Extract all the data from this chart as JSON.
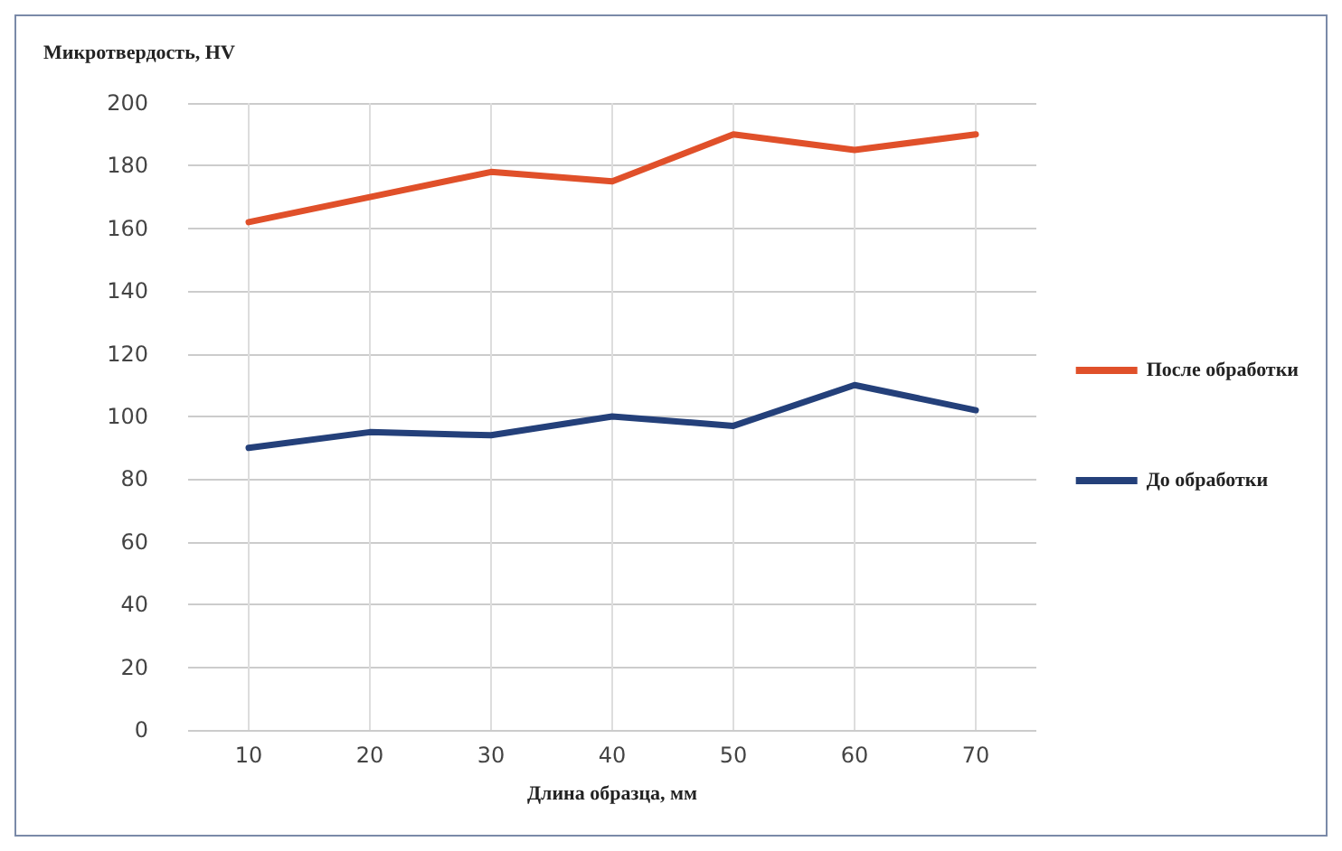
{
  "chart_data": {
    "type": "line",
    "xlabel": "Длина образца, мм",
    "ylabel": "Микротвердость, HV",
    "x": [
      10,
      20,
      30,
      40,
      50,
      60,
      70
    ],
    "xlim": [
      5,
      75
    ],
    "xticks": [
      10,
      20,
      30,
      40,
      50,
      60,
      70
    ],
    "ylim": [
      0,
      200
    ],
    "yticks": [
      0,
      20,
      40,
      60,
      80,
      100,
      120,
      140,
      160,
      180,
      200
    ],
    "grid": true,
    "legend": "right",
    "marker": "none",
    "line_style": "solid",
    "series": [
      {
        "name": "После обработки",
        "color": "#e0502a",
        "values": [
          162,
          170,
          178,
          175,
          190,
          185,
          190
        ]
      },
      {
        "name": "До обработки",
        "color": "#24407a",
        "values": [
          90,
          95,
          94,
          100,
          97,
          110,
          102
        ]
      }
    ]
  }
}
